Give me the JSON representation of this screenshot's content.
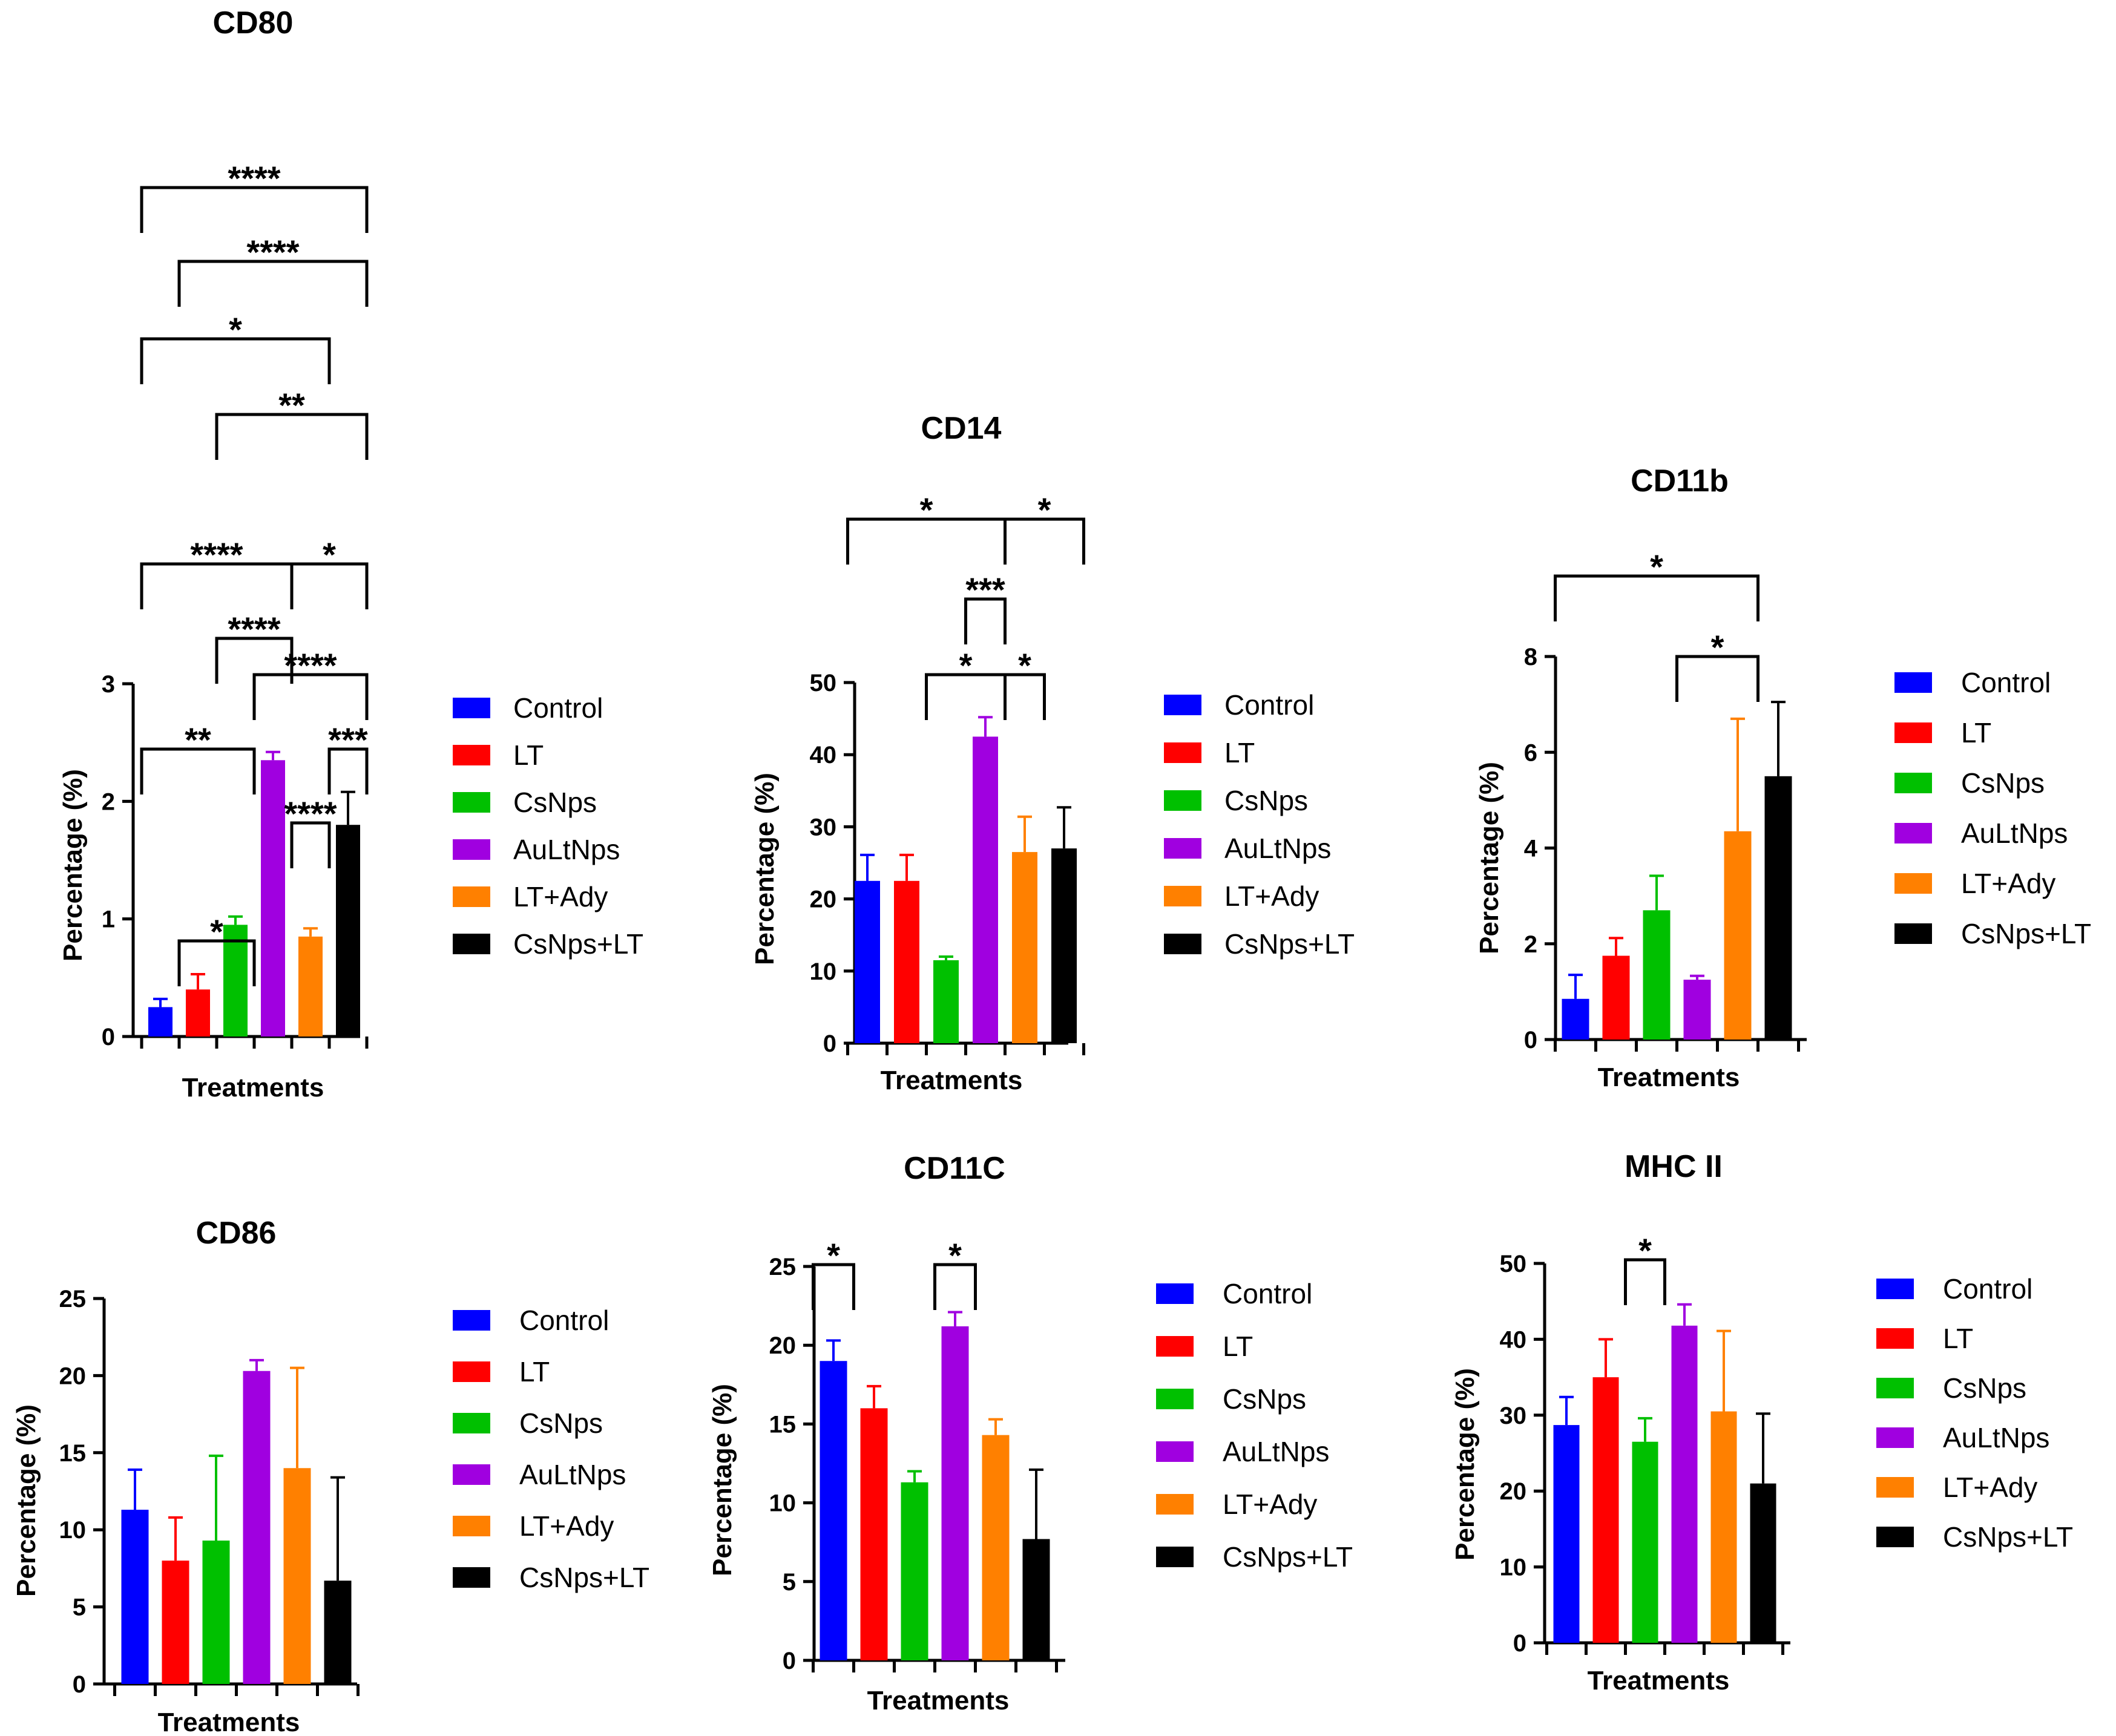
{
  "legend_labels": [
    "Control",
    "LT",
    "CsNps",
    "AuLtNps",
    "LT+Ady",
    "CsNps+LT"
  ],
  "colors": [
    "#0000ff",
    "#ff0000",
    "#00c000",
    "#a000e0",
    "#ff8000",
    "#000000"
  ],
  "chart_data": [
    {
      "id": "cd80",
      "type": "bar",
      "title": "CD80",
      "xlabel": "Treatments",
      "ylabel": "Percentage (%)",
      "categories": [
        "Control",
        "LT",
        "CsNps",
        "AuLtNps",
        "LT+Ady",
        "CsNps+LT"
      ],
      "values": [
        0.25,
        0.4,
        0.95,
        2.35,
        0.85,
        1.8
      ],
      "errors": [
        0.07,
        0.13,
        0.07,
        0.07,
        0.07,
        0.28
      ],
      "ylim": [
        0,
        3
      ],
      "yticks": [
        0,
        1,
        2,
        3
      ],
      "tick_labels": [
        "0",
        "1",
        "2",
        "3"
      ],
      "significance": [
        {
          "groups": [
            1,
            3
          ],
          "stars": "*"
        },
        {
          "groups": [
            4,
            5
          ],
          "stars": "****"
        },
        {
          "groups": [
            0,
            3
          ],
          "stars": "**"
        },
        {
          "groups": [
            5,
            6
          ],
          "stars": "***"
        },
        {
          "groups": [
            3,
            6
          ],
          "stars": "****"
        },
        {
          "groups": [
            2,
            4
          ],
          "stars": "****"
        },
        {
          "groups": [
            4,
            6
          ],
          "stars": "*"
        },
        {
          "groups": [
            0,
            4
          ],
          "stars": "****"
        },
        {
          "groups": [
            2,
            6
          ],
          "stars": "**"
        },
        {
          "groups": [
            0,
            5
          ],
          "stars": "*"
        },
        {
          "groups": [
            1,
            6
          ],
          "stars": "****"
        },
        {
          "groups": [
            0,
            6
          ],
          "stars": "****"
        }
      ]
    },
    {
      "id": "cd14",
      "type": "bar",
      "title": "CD14",
      "xlabel": "Treatments",
      "ylabel": "Percentage (%)",
      "categories": [
        "Control",
        "LT",
        "CsNps",
        "AuLtNps",
        "LT+Ady",
        "CsNps+LT"
      ],
      "values": [
        22.5,
        22.5,
        11.5,
        42.5,
        26.5,
        27
      ],
      "errors": [
        3.6,
        3.6,
        0.5,
        2.7,
        4.9,
        5.7
      ],
      "ylim": [
        0,
        50
      ],
      "yticks": [
        0,
        10,
        20,
        30,
        40,
        50
      ],
      "tick_labels": [
        "0",
        "10",
        "20",
        "30",
        "40",
        "50"
      ],
      "significance": [
        {
          "groups": [
            2,
            4
          ],
          "stars": "*"
        },
        {
          "groups": [
            4,
            5
          ],
          "stars": "*"
        },
        {
          "groups": [
            3,
            4
          ],
          "stars": "***"
        },
        {
          "groups": [
            0,
            4
          ],
          "stars": "*"
        },
        {
          "groups": [
            4,
            6
          ],
          "stars": "*"
        }
      ]
    },
    {
      "id": "cd11b",
      "type": "bar",
      "title": "CD11b",
      "xlabel": "Treatments",
      "ylabel": "Percentage (%)",
      "categories": [
        "Control",
        "LT",
        "CsNps",
        "AuLtNps",
        "LT+Ady",
        "CsNps+LT"
      ],
      "values": [
        0.85,
        1.75,
        2.7,
        1.25,
        4.35,
        5.5
      ],
      "errors": [
        0.5,
        0.37,
        0.72,
        0.08,
        2.35,
        1.55
      ],
      "ylim": [
        0,
        8
      ],
      "yticks": [
        0,
        2,
        4,
        6,
        8
      ],
      "tick_labels": [
        "0",
        "2",
        "4",
        "6",
        "8"
      ],
      "significance": [
        {
          "groups": [
            3,
            5
          ],
          "stars": "*"
        },
        {
          "groups": [
            0,
            5
          ],
          "stars": "*"
        }
      ]
    },
    {
      "id": "cd86",
      "type": "bar",
      "title": "CD86",
      "xlabel": "Treatments",
      "ylabel": "Percentage (%)",
      "categories": [
        "Control",
        "LT",
        "CsNps",
        "AuLtNps",
        "LT+Ady",
        "CsNps+LT"
      ],
      "values": [
        11.3,
        8,
        9.3,
        20.3,
        14,
        6.7
      ],
      "errors": [
        2.6,
        2.8,
        5.5,
        0.7,
        6.5,
        6.7
      ],
      "ylim": [
        0,
        25
      ],
      "yticks": [
        0,
        5,
        10,
        15,
        20,
        25
      ],
      "tick_labels": [
        "0",
        "5",
        "10",
        "15",
        "20",
        "25"
      ],
      "significance": []
    },
    {
      "id": "cd11c",
      "type": "bar",
      "title": "CD11C",
      "xlabel": "Treatments",
      "ylabel": "Percentage (%)",
      "categories": [
        "Control",
        "LT",
        "CsNps",
        "AuLtNps",
        "LT+Ady",
        "CsNps+LT"
      ],
      "values": [
        19,
        16,
        11.3,
        21.2,
        14.3,
        7.7
      ],
      "errors": [
        1.3,
        1.4,
        0.7,
        0.9,
        1.0,
        4.4
      ],
      "ylim": [
        0,
        25
      ],
      "yticks": [
        0,
        5,
        10,
        15,
        20,
        25
      ],
      "tick_labels": [
        "0",
        "5",
        "10",
        "15",
        "20",
        "25"
      ],
      "significance": [
        {
          "groups": [
            0,
            1
          ],
          "stars": "*"
        },
        {
          "groups": [
            3,
            4
          ],
          "stars": "*"
        }
      ]
    },
    {
      "id": "mhc2",
      "type": "bar",
      "title": "MHC II",
      "xlabel": "Treatments",
      "ylabel": "Percentage (%)",
      "categories": [
        "Control",
        "LT",
        "CsNps",
        "AuLtNps",
        "LT+Ady",
        "CsNps+LT"
      ],
      "values": [
        28.7,
        35,
        26.5,
        41.8,
        30.5,
        21
      ],
      "errors": [
        3.7,
        5,
        3.1,
        2.8,
        10.6,
        9.2
      ],
      "ylim": [
        0,
        50
      ],
      "yticks": [
        0,
        10,
        20,
        30,
        40,
        50
      ],
      "tick_labels": [
        "0",
        "10",
        "20",
        "30",
        "40",
        "50"
      ],
      "significance": [
        {
          "groups": [
            2,
            3
          ],
          "stars": "*"
        }
      ]
    }
  ]
}
